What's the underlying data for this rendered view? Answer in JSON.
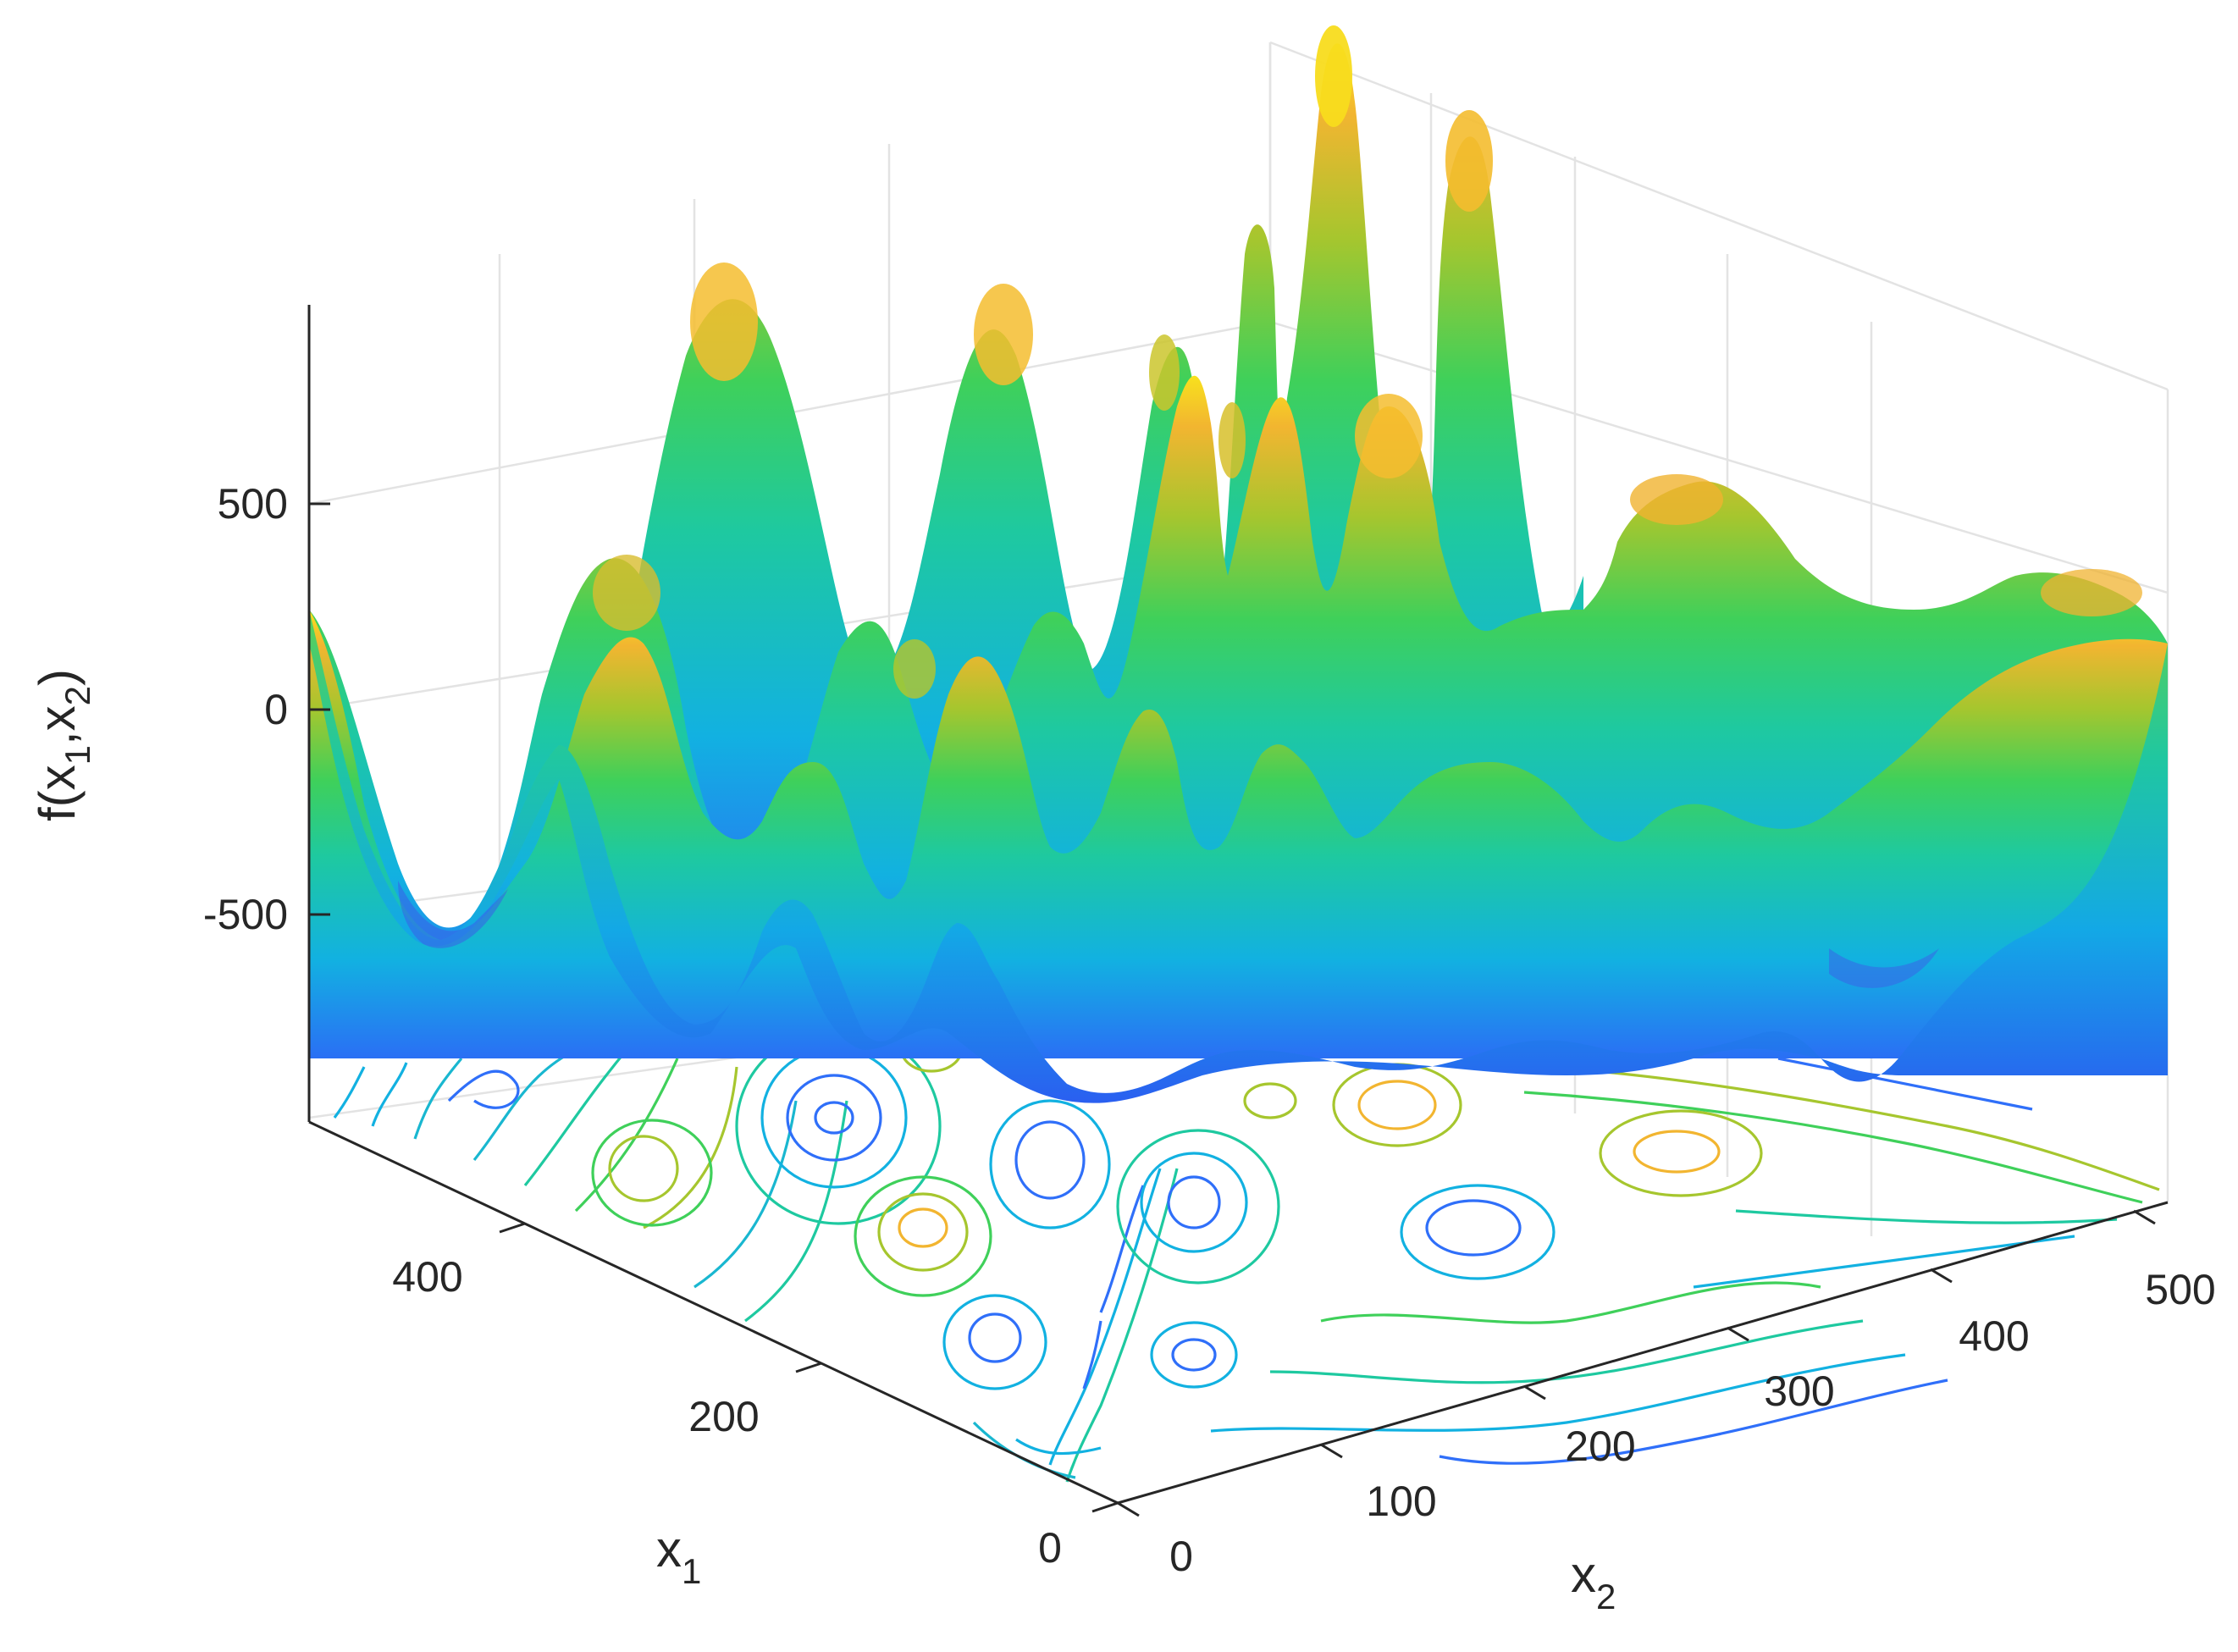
{
  "chart_data": {
    "type": "surface",
    "xlabel": "x",
    "xlabel_sub": "1",
    "ylabel": "x",
    "ylabel_sub": "2",
    "zlabel_main": "f(x",
    "zlabel_sub1": "1",
    "zlabel_mid": ",x",
    "zlabel_sub2": "2",
    "zlabel_close": ")",
    "x1_range": [
      0,
      512
    ],
    "x2_range": [
      0,
      512
    ],
    "z_range": [
      -1000,
      1000
    ],
    "x1_ticks": [
      "0",
      "200",
      "400"
    ],
    "x2_ticks": [
      "0",
      "100",
      "200",
      "300",
      "400",
      "500"
    ],
    "z_ticks": [
      "-500",
      "0",
      "500"
    ],
    "grid": true,
    "colormap": [
      "#3e26a8",
      "#2f6ff9",
      "#12b1e1",
      "#1ec9a0",
      "#3fd05a",
      "#a6c62e",
      "#f2b530",
      "#f8e11d",
      "#f9fb0e"
    ],
    "contour_projection": "floor"
  }
}
